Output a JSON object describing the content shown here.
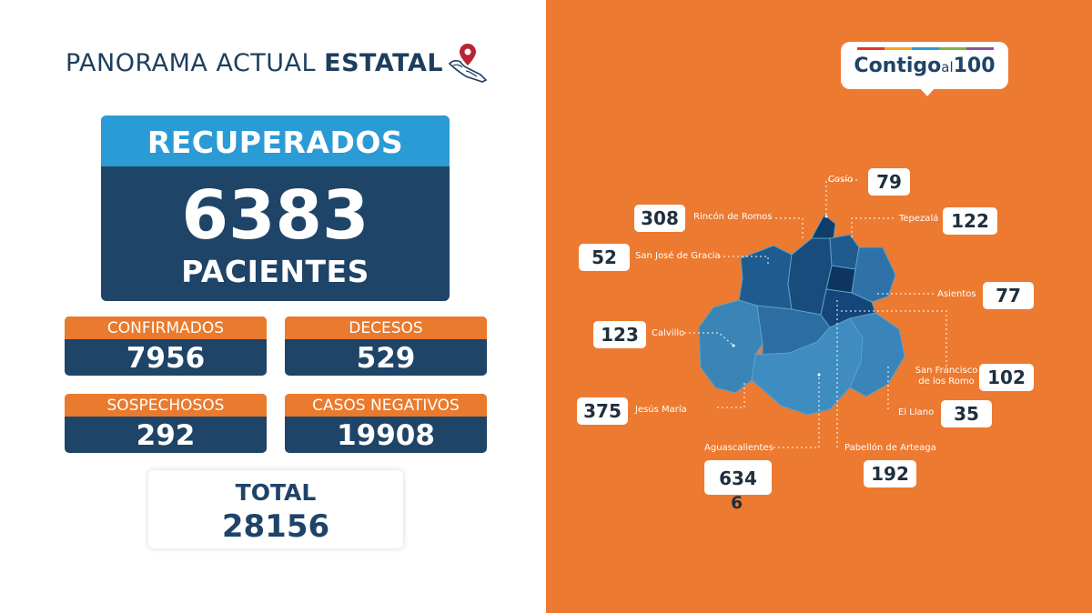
{
  "header": {
    "title_regular": "PANORAMA ACTUAL ",
    "title_bold": "ESTATAL",
    "icon": "mexico-map-pin-icon"
  },
  "recovered": {
    "label": "RECUPERADOS",
    "value": "6383",
    "unit": "PACIENTES"
  },
  "stats": [
    {
      "label": "CONFIRMADOS",
      "value": "7956"
    },
    {
      "label": "DECESOS",
      "value": "529"
    },
    {
      "label": "SOSPECHOSOS",
      "value": "292"
    },
    {
      "label": "CASOS NEGATIVOS",
      "value": "19908"
    }
  ],
  "total": {
    "label": "TOTAL",
    "value": "28156"
  },
  "logo": {
    "text_main": "Contigo",
    "text_small": "al",
    "text_num": "100",
    "bar_colors": [
      "#e5352d",
      "#f6a71c",
      "#2a9bd6",
      "#7ab648",
      "#8e4fa0"
    ]
  },
  "municipalities": [
    {
      "name": "Cosío",
      "value": "79"
    },
    {
      "name": "Rincón de Romos",
      "value": "308"
    },
    {
      "name": "Tepezalá",
      "value": "122"
    },
    {
      "name": "San José de Gracia",
      "value": "52"
    },
    {
      "name": "Asientos",
      "value": "77"
    },
    {
      "name": "Calvillo",
      "value": "123"
    },
    {
      "name": "San Francisco de los Romo",
      "value": "102"
    },
    {
      "name": "Jesús María",
      "value": "375"
    },
    {
      "name": "El Llano",
      "value": "35"
    },
    {
      "name": "Aguascalientes",
      "value": "634",
      "extra": "6"
    },
    {
      "name": "Pabellón de Arteaga",
      "value": "192"
    }
  ],
  "colors": {
    "navy": "#1e4468",
    "sky": "#2b9bd6",
    "orange": "#ec7a30"
  }
}
